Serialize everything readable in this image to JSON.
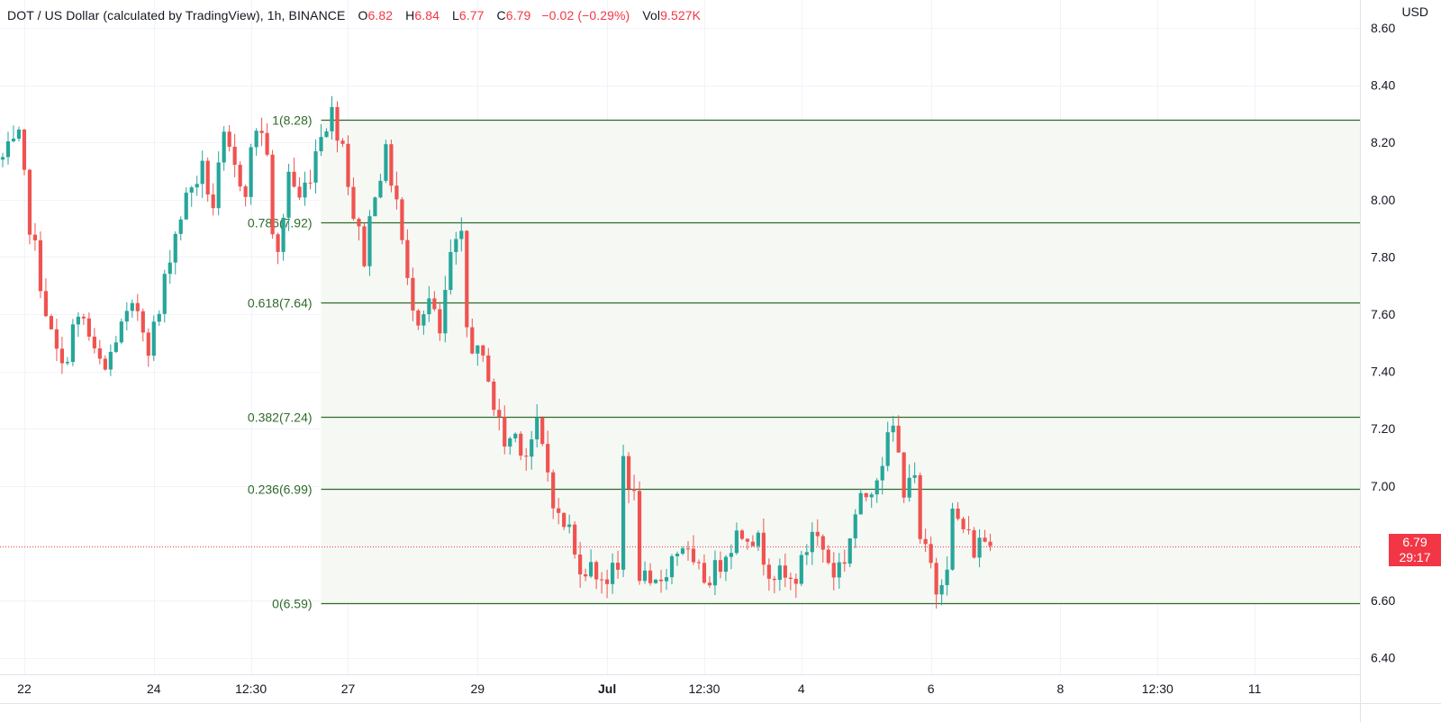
{
  "header": {
    "title": "DOT / US Dollar (calculated by TradingView), 1h, BINANCE",
    "open_label": "O",
    "open_value": "6.82",
    "high_label": "H",
    "high_value": "6.84",
    "low_label": "L",
    "low_value": "6.77",
    "close_label": "C",
    "close_value": "6.79",
    "change": "−0.02 (−0.29%)",
    "volume_label": "Vol",
    "volume_value": "9.527K"
  },
  "currency": "USD",
  "last_price": {
    "price": "6.79",
    "countdown": "29:17"
  },
  "colors": {
    "up": "#26a69a",
    "down": "#ef5350",
    "fib_line": "#2f6b2a",
    "fib_fill": "#f6f8f4",
    "grid": "#f0f3fa",
    "price_tag": "#f23645"
  },
  "chart_data": {
    "type": "candlestick",
    "title": "DOT / US Dollar (calculated by TradingView), 1h, BINANCE",
    "ylim": [
      6.32,
      8.62
    ],
    "y_ticks": [
      "8.60",
      "8.40",
      "8.20",
      "8.00",
      "7.80",
      "7.60",
      "7.40",
      "7.20",
      "7.00",
      "6.60",
      "6.40"
    ],
    "x_ticks": [
      {
        "label": "22",
        "bar": 4,
        "bold": false
      },
      {
        "label": "24",
        "bar": 28,
        "bold": false
      },
      {
        "label": "12:30",
        "bar": 46,
        "bold": false
      },
      {
        "label": "27",
        "bar": 64,
        "bold": false
      },
      {
        "label": "29",
        "bar": 88,
        "bold": false
      },
      {
        "label": "Jul",
        "bar": 112,
        "bold": true
      },
      {
        "label": "12:30",
        "bar": 130,
        "bold": false
      },
      {
        "label": "4",
        "bar": 148,
        "bold": false
      },
      {
        "label": "6",
        "bar": 172,
        "bold": false
      },
      {
        "label": "8",
        "bar": 196,
        "bold": false
      },
      {
        "label": "12:30",
        "bar": 214,
        "bold": false
      },
      {
        "label": "11",
        "bar": 232,
        "bold": false
      }
    ],
    "bars_visible": 252,
    "grid": true,
    "fibonacci": {
      "start_bar": 59,
      "levels": [
        {
          "label": "1(8.28)",
          "value": 8.28
        },
        {
          "label": "0.786(7.92)",
          "value": 7.92
        },
        {
          "label": "0.618(7.64)",
          "value": 7.64
        },
        {
          "label": "0.382(7.24)",
          "value": 7.24
        },
        {
          "label": "0.236(6.99)",
          "value": 6.99
        },
        {
          "label": "0(6.59)",
          "value": 6.59
        }
      ]
    },
    "last_price": 6.79,
    "path_points": [
      [
        0,
        8.14
      ],
      [
        3,
        8.2
      ],
      [
        5,
        7.92
      ],
      [
        7,
        7.72
      ],
      [
        9,
        7.52
      ],
      [
        11,
        7.4
      ],
      [
        13,
        7.55
      ],
      [
        15,
        7.58
      ],
      [
        17,
        7.45
      ],
      [
        19,
        7.4
      ],
      [
        21,
        7.52
      ],
      [
        23,
        7.58
      ],
      [
        25,
        7.62
      ],
      [
        27,
        7.5
      ],
      [
        29,
        7.6
      ],
      [
        31,
        7.82
      ],
      [
        33,
        7.95
      ],
      [
        35,
        8.05
      ],
      [
        37,
        8.1
      ],
      [
        39,
        7.98
      ],
      [
        41,
        8.2
      ],
      [
        43,
        8.1
      ],
      [
        45,
        8.05
      ],
      [
        47,
        8.26
      ],
      [
        49,
        8.18
      ],
      [
        50,
        7.85
      ],
      [
        51,
        7.8
      ],
      [
        53,
        8.1
      ],
      [
        55,
        8.0
      ],
      [
        57,
        8.1
      ],
      [
        59,
        8.25
      ],
      [
        61,
        8.3
      ],
      [
        63,
        8.2
      ],
      [
        65,
        7.95
      ],
      [
        67,
        7.8
      ],
      [
        69,
        8.05
      ],
      [
        71,
        8.15
      ],
      [
        73,
        8.0
      ],
      [
        75,
        7.7
      ],
      [
        77,
        7.6
      ],
      [
        79,
        7.65
      ],
      [
        81,
        7.52
      ],
      [
        83,
        7.8
      ],
      [
        85,
        7.85
      ],
      [
        86,
        7.55
      ],
      [
        88,
        7.45
      ],
      [
        90,
        7.4
      ],
      [
        91,
        7.28
      ],
      [
        93,
        7.15
      ],
      [
        95,
        7.18
      ],
      [
        97,
        7.12
      ],
      [
        99,
        7.2
      ],
      [
        101,
        7.05
      ],
      [
        103,
        6.88
      ],
      [
        105,
        6.85
      ],
      [
        106,
        6.75
      ],
      [
        108,
        6.72
      ],
      [
        110,
        6.7
      ],
      [
        112,
        6.68
      ],
      [
        114,
        6.7
      ],
      [
        115,
        7.1
      ],
      [
        117,
        6.95
      ],
      [
        118,
        6.7
      ],
      [
        120,
        6.62
      ],
      [
        122,
        6.68
      ],
      [
        124,
        6.75
      ],
      [
        126,
        6.8
      ],
      [
        128,
        6.7
      ],
      [
        130,
        6.68
      ],
      [
        132,
        6.7
      ],
      [
        134,
        6.78
      ],
      [
        136,
        6.83
      ],
      [
        138,
        6.85
      ],
      [
        140,
        6.8
      ],
      [
        142,
        6.72
      ],
      [
        144,
        6.68
      ],
      [
        146,
        6.66
      ],
      [
        148,
        6.72
      ],
      [
        150,
        6.85
      ],
      [
        152,
        6.78
      ],
      [
        154,
        6.7
      ],
      [
        156,
        6.75
      ],
      [
        158,
        6.9
      ],
      [
        160,
        6.97
      ],
      [
        162,
        7.05
      ],
      [
        164,
        7.15
      ],
      [
        165,
        7.2
      ],
      [
        167,
        7.0
      ],
      [
        168,
        7.05
      ],
      [
        169,
        7.0
      ],
      [
        170,
        6.8
      ],
      [
        172,
        6.72
      ],
      [
        173,
        6.64
      ],
      [
        175,
        6.75
      ],
      [
        176,
        6.9
      ],
      [
        178,
        6.85
      ],
      [
        180,
        6.78
      ],
      [
        182,
        6.82
      ],
      [
        183,
        6.79
      ]
    ]
  }
}
